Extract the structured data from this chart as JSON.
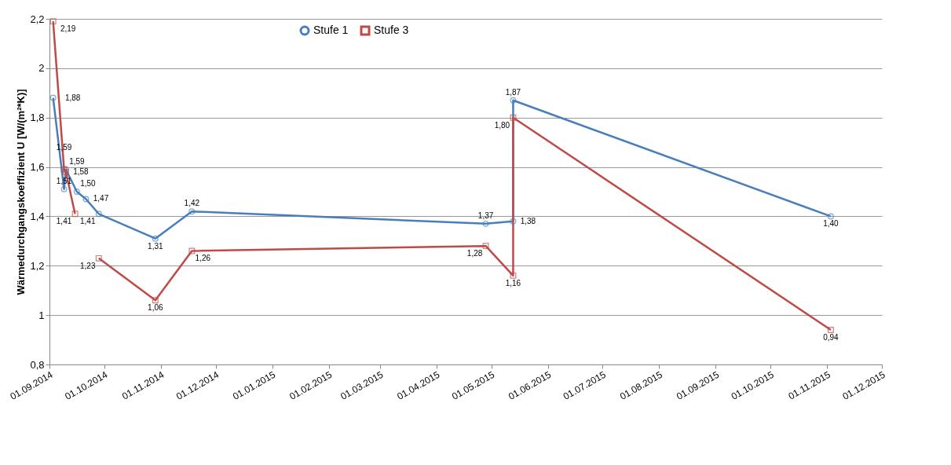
{
  "chart_data": {
    "type": "line",
    "ylabel": "Wärmedurchgangskoeffizient U [W/(m²*K)]",
    "xlim": [
      "2014-09-01",
      "2015-12-01"
    ],
    "xticks": [
      {
        "value": "2014-09-01",
        "label": "01.09.2014"
      },
      {
        "value": "2014-10-01",
        "label": "01.10.2014"
      },
      {
        "value": "2014-11-01",
        "label": "01.11.2014"
      },
      {
        "value": "2014-12-01",
        "label": "01.12.2014"
      },
      {
        "value": "2015-01-01",
        "label": "01.01.2015"
      },
      {
        "value": "2015-02-01",
        "label": "01.02.2015"
      },
      {
        "value": "2015-03-01",
        "label": "01.03.2015"
      },
      {
        "value": "2015-04-01",
        "label": "01.04.2015"
      },
      {
        "value": "2015-05-01",
        "label": "01.05.2015"
      },
      {
        "value": "2015-06-01",
        "label": "01.06.2015"
      },
      {
        "value": "2015-07-01",
        "label": "01.07.2015"
      },
      {
        "value": "2015-08-01",
        "label": "01.08.2015"
      },
      {
        "value": "2015-09-01",
        "label": "01.09.2015"
      },
      {
        "value": "2015-10-01",
        "label": "01.10.2015"
      },
      {
        "value": "2015-11-01",
        "label": "01.11.2015"
      },
      {
        "value": "2015-12-01",
        "label": "01.12.2015"
      }
    ],
    "ylim": [
      0.8,
      2.2
    ],
    "yticks": [
      {
        "value": 0.8,
        "label": "0,8"
      },
      {
        "value": 1,
        "label": "1"
      },
      {
        "value": 1.2,
        "label": "1,2"
      },
      {
        "value": 1.4,
        "label": "1,4"
      },
      {
        "value": 1.6,
        "label": "1,6"
      },
      {
        "value": 1.8,
        "label": "1,8"
      },
      {
        "value": 2,
        "label": "2"
      },
      {
        "value": 2.2,
        "label": "2,2"
      }
    ],
    "grid": "y",
    "legend": "top",
    "series": [
      {
        "name": "Stufe 1",
        "color": "#4a7ebb",
        "marker": "circle",
        "x": [
          "2014-09-03",
          "2014-09-09",
          "2014-09-10",
          "2014-09-16",
          "2014-09-21",
          "2014-09-28",
          "2014-10-29",
          "2014-11-18",
          "2015-04-28",
          "2015-05-13",
          "2015-05-13",
          "2015-11-03"
        ],
        "values": [
          1.88,
          1.51,
          1.59,
          1.5,
          1.47,
          1.41,
          1.31,
          1.42,
          1.37,
          1.38,
          1.87,
          1.4
        ],
        "value_labels": [
          "1,88",
          "1,51",
          "1,59",
          "1,50",
          "1,47",
          "1,41",
          "1,31",
          "1,42",
          "1,37",
          "1,38",
          "1,87",
          "1,40"
        ]
      },
      {
        "name": "Stufe 3",
        "color": "#be4b48",
        "marker": "square",
        "x": [
          "2014-09-03",
          "2014-09-09",
          "2014-09-10",
          "2014-09-15",
          "2014-09-21",
          "2014-09-28",
          "2014-10-29",
          "2014-11-18",
          "2015-04-28",
          "2015-05-13",
          "2015-05-13",
          "2015-11-03"
        ],
        "values": [
          2.19,
          1.59,
          1.58,
          1.41,
          null,
          1.23,
          1.06,
          1.26,
          1.28,
          1.16,
          1.8,
          0.94
        ],
        "value_labels": [
          "2,19",
          "1,59",
          "1,58",
          "1,41",
          null,
          "1,23",
          "1,06",
          "1,26",
          "1,28",
          "1,16",
          "1,80",
          "0,94"
        ]
      }
    ]
  }
}
